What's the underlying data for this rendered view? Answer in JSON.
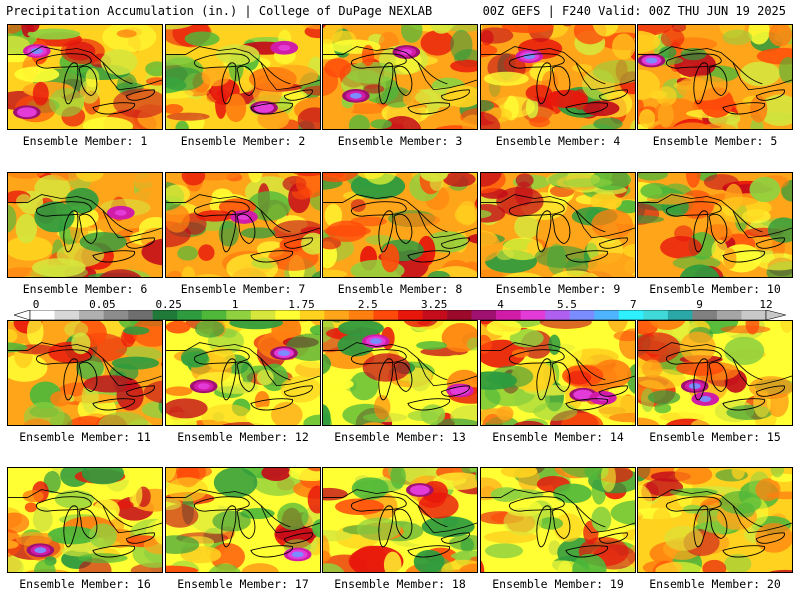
{
  "header": {
    "left_title": "Precipitation Accumulation (in.) | College of DuPage NEXLAB",
    "right_title": "00Z GEFS | F240 Valid: 00Z THU JUN 19 2025"
  },
  "colorbar": {
    "labels": [
      "0",
      "0.05",
      "0.25",
      "1",
      "1.75",
      "2.5",
      "3.25",
      "4",
      "5.5",
      "7",
      "9",
      "12"
    ],
    "colors": [
      "#ffffff",
      "#d8d8d8",
      "#b0b0b0",
      "#8c8c8c",
      "#6e6e6e",
      "#1f7a3a",
      "#2e9b3e",
      "#4fb83a",
      "#8fd13f",
      "#d6e63c",
      "#ffff33",
      "#ffd21f",
      "#ffa51a",
      "#ff7f10",
      "#ff4a0a",
      "#e8170c",
      "#c40c1a",
      "#9b0a2a",
      "#a01070",
      "#d11ca8",
      "#e33bd8",
      "#b060f0",
      "#7a8cff",
      "#4fb4ff",
      "#2ef0ff",
      "#40d8d8",
      "#2aa8a8",
      "#808080",
      "#a6a6a6",
      "#c8c8c8"
    ]
  },
  "panels": [
    {
      "label": "Ensemble Member: 1"
    },
    {
      "label": "Ensemble Member: 2"
    },
    {
      "label": "Ensemble Member: 3"
    },
    {
      "label": "Ensemble Member: 4"
    },
    {
      "label": "Ensemble Member: 5"
    },
    {
      "label": "Ensemble Member: 6"
    },
    {
      "label": "Ensemble Member: 7"
    },
    {
      "label": "Ensemble Member: 8"
    },
    {
      "label": "Ensemble Member: 9"
    },
    {
      "label": "Ensemble Member: 10"
    },
    {
      "label": "Ensemble Member: 11"
    },
    {
      "label": "Ensemble Member: 12"
    },
    {
      "label": "Ensemble Member: 13"
    },
    {
      "label": "Ensemble Member: 14"
    },
    {
      "label": "Ensemble Member: 15"
    },
    {
      "label": "Ensemble Member: 16"
    },
    {
      "label": "Ensemble Member: 17"
    },
    {
      "label": "Ensemble Member: 18"
    },
    {
      "label": "Ensemble Member: 19"
    },
    {
      "label": "Ensemble Member: 20"
    }
  ]
}
